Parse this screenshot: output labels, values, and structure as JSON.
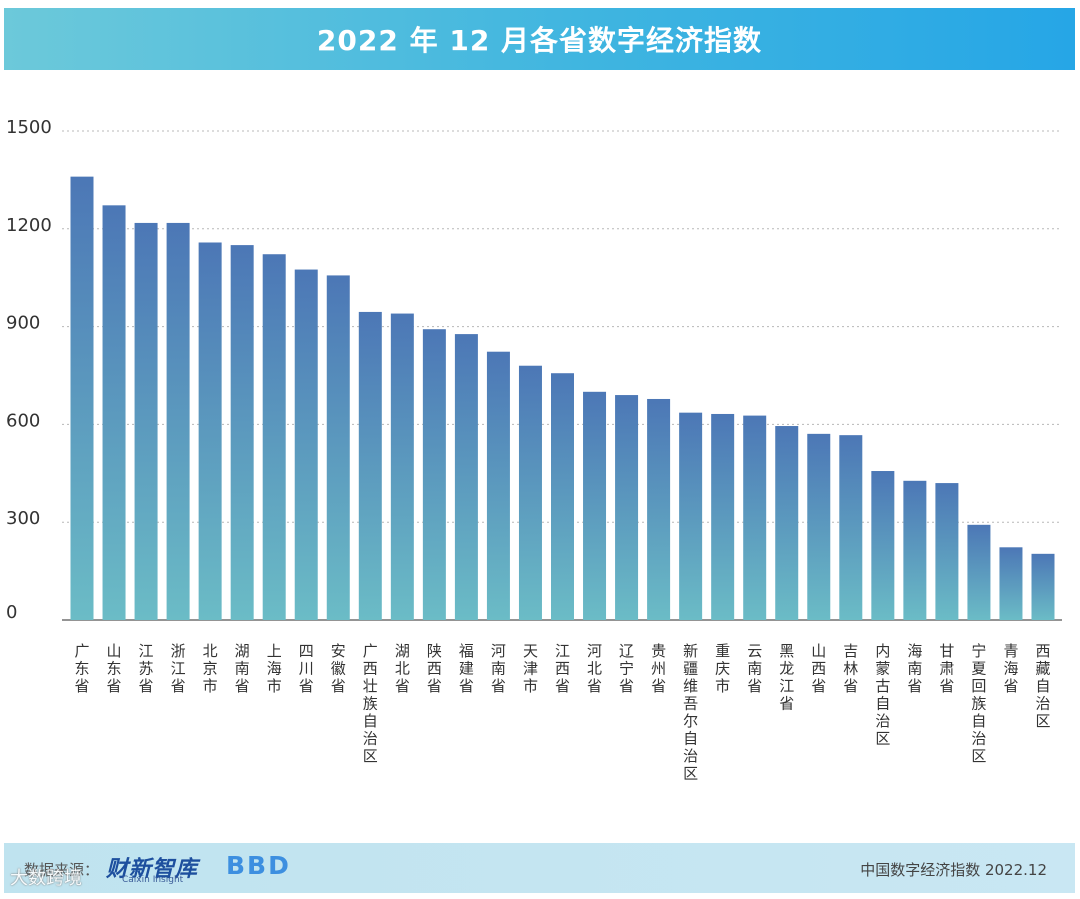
{
  "header": {
    "title": "2022 年 12 月各省数字经济指数"
  },
  "chart_data": {
    "type": "bar",
    "title": "2022 年 12 月各省数字经济指数",
    "xlabel": "",
    "ylabel": "",
    "ylim": [
      0,
      1500
    ],
    "yticks": [
      0,
      300,
      600,
      900,
      1200,
      1500
    ],
    "grid": true,
    "categories": [
      "广东省",
      "山东省",
      "江苏省",
      "浙江省",
      "北京市",
      "湖南省",
      "上海市",
      "四川省",
      "安徽省",
      "广西壮族自治区",
      "湖北省",
      "陕西省",
      "福建省",
      "河南省",
      "天津市",
      "江西省",
      "河北省",
      "辽宁省",
      "贵州省",
      "新疆维吾尔自治区",
      "重庆市",
      "云南省",
      "黑龙江省",
      "山西省",
      "吉林省",
      "内蒙古自治区",
      "海南省",
      "甘肃省",
      "宁夏回族自治区",
      "青海省",
      "西藏自治区"
    ],
    "values": [
      1360,
      1272,
      1218,
      1218,
      1158,
      1150,
      1122,
      1075,
      1057,
      945,
      940,
      892,
      877,
      823,
      780,
      757,
      700,
      690,
      678,
      636,
      632,
      627,
      595,
      571,
      567,
      457,
      427,
      420,
      292,
      223,
      203
    ],
    "colors": {
      "bar_top": "#4c77b6",
      "bar_bottom": "#6bbcc6",
      "grid": "#b8b8b8",
      "axis": "#555555",
      "text": "#333333"
    }
  },
  "footer": {
    "source_label": "数据来源：",
    "logo_caixin": "财新智库",
    "logo_caixin_sub": "Caixin Insight",
    "logo_bbd": "BBD",
    "note": "中国数字经济指数 2022.12"
  },
  "watermark": "大数跨境"
}
